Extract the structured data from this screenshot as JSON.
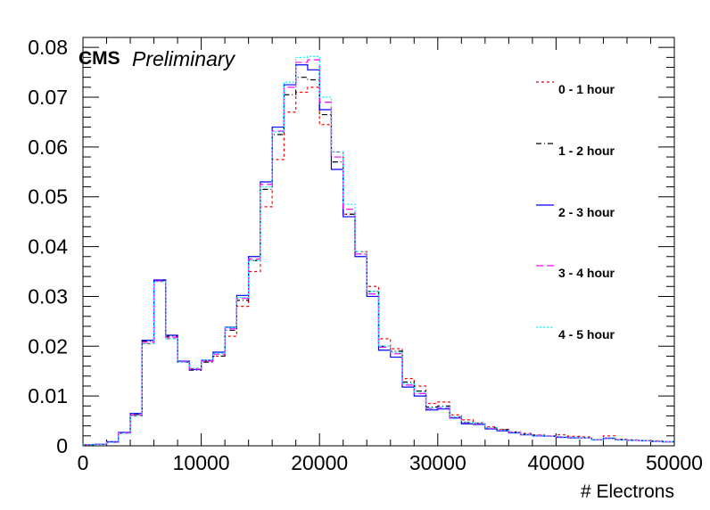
{
  "chart_data": {
    "type": "histogram",
    "header": {
      "experiment": "CMS",
      "status": "Preliminary"
    },
    "xlabel": "# Electrons",
    "ylabel": "",
    "xlim": [
      0,
      50000
    ],
    "ylim": [
      0,
      0.082
    ],
    "x_ticks": [
      0,
      10000,
      20000,
      30000,
      40000,
      50000
    ],
    "x_tick_labels": [
      "0",
      "10000",
      "20000",
      "30000",
      "40000",
      "50000"
    ],
    "y_ticks": [
      0,
      0.01,
      0.02,
      0.03,
      0.04,
      0.05,
      0.06,
      0.07,
      0.08
    ],
    "y_tick_labels": [
      "0",
      "0.01",
      "0.02",
      "0.03",
      "0.04",
      "0.05",
      "0.06",
      "0.07",
      "0.08"
    ],
    "grid": false,
    "legend_position": "right",
    "bin_width": 1000,
    "bin_edges_start": 0,
    "series": [
      {
        "name": "0 - 1 hour",
        "color": "#ff0000",
        "line_style": "dashed-short",
        "values": [
          0.0002,
          0.0003,
          0.0008,
          0.0025,
          0.006,
          0.0205,
          0.033,
          0.0215,
          0.017,
          0.0155,
          0.017,
          0.018,
          0.022,
          0.028,
          0.035,
          0.048,
          0.0575,
          0.067,
          0.071,
          0.072,
          0.0645,
          0.059,
          0.0465,
          0.039,
          0.032,
          0.0215,
          0.0195,
          0.0135,
          0.012,
          0.0085,
          0.0088,
          0.0062,
          0.0052,
          0.0046,
          0.0038,
          0.0033,
          0.0028,
          0.0025,
          0.0022,
          0.002,
          0.0022,
          0.0019,
          0.0018,
          0.0012,
          0.002,
          0.0013,
          0.0012,
          0.001,
          0.001,
          0.0008
        ]
      },
      {
        "name": "1 - 2 hour",
        "color": "#000000",
        "line_style": "dash-dot",
        "values": [
          0.0002,
          0.0003,
          0.0008,
          0.0026,
          0.0063,
          0.021,
          0.0332,
          0.022,
          0.0168,
          0.0152,
          0.0168,
          0.018,
          0.0232,
          0.0292,
          0.0372,
          0.0515,
          0.0625,
          0.0705,
          0.074,
          0.0735,
          0.0665,
          0.057,
          0.0465,
          0.0385,
          0.031,
          0.02,
          0.019,
          0.0128,
          0.011,
          0.0078,
          0.008,
          0.0058,
          0.0047,
          0.0045,
          0.0036,
          0.0032,
          0.0027,
          0.0023,
          0.0021,
          0.0019,
          0.0018,
          0.0017,
          0.0016,
          0.0012,
          0.0016,
          0.0012,
          0.0011,
          0.001,
          0.0009,
          0.0008
        ]
      },
      {
        "name": "2 - 3 hour",
        "color": "#0000ff",
        "line_style": "solid",
        "values": [
          0.0002,
          0.0003,
          0.0008,
          0.0027,
          0.0065,
          0.0212,
          0.0333,
          0.0222,
          0.017,
          0.0153,
          0.0172,
          0.0188,
          0.0238,
          0.0302,
          0.038,
          0.053,
          0.064,
          0.0725,
          0.0765,
          0.0755,
          0.0675,
          0.0555,
          0.046,
          0.038,
          0.03,
          0.0192,
          0.0178,
          0.0118,
          0.01,
          0.0072,
          0.0074,
          0.0056,
          0.0044,
          0.0043,
          0.0034,
          0.003,
          0.0026,
          0.0022,
          0.002,
          0.0019,
          0.0017,
          0.0016,
          0.0016,
          0.0012,
          0.0015,
          0.0012,
          0.0011,
          0.001,
          0.0009,
          0.0008
        ]
      },
      {
        "name": "3 - 4 hour",
        "color": "#ff00ff",
        "line_style": "dashed-long",
        "values": [
          0.0002,
          0.0003,
          0.0007,
          0.0026,
          0.0062,
          0.0208,
          0.0331,
          0.0218,
          0.0169,
          0.0154,
          0.017,
          0.0184,
          0.0235,
          0.0296,
          0.0375,
          0.0525,
          0.0632,
          0.072,
          0.077,
          0.0775,
          0.069,
          0.058,
          0.0475,
          0.0385,
          0.0305,
          0.0198,
          0.0185,
          0.0122,
          0.0105,
          0.0075,
          0.0077,
          0.0057,
          0.0046,
          0.0044,
          0.0035,
          0.0031,
          0.0027,
          0.0023,
          0.0021,
          0.0019,
          0.0018,
          0.0017,
          0.0016,
          0.0012,
          0.0016,
          0.0012,
          0.0011,
          0.001,
          0.0009,
          0.0008
        ]
      },
      {
        "name": "4 - 5 hour",
        "color": "#00ffff",
        "line_style": "dotted",
        "values": [
          0.0002,
          0.0003,
          0.0007,
          0.0025,
          0.006,
          0.0205,
          0.033,
          0.0215,
          0.0168,
          0.0156,
          0.0172,
          0.0186,
          0.0237,
          0.0298,
          0.0372,
          0.052,
          0.063,
          0.073,
          0.078,
          0.0782,
          0.07,
          0.059,
          0.0485,
          0.039,
          0.031,
          0.02,
          0.0188,
          0.0125,
          0.0108,
          0.0076,
          0.0078,
          0.0058,
          0.0047,
          0.0045,
          0.0036,
          0.0031,
          0.0027,
          0.0023,
          0.0021,
          0.0019,
          0.0018,
          0.0017,
          0.0016,
          0.0012,
          0.0016,
          0.0012,
          0.0011,
          0.001,
          0.0009,
          0.0008
        ]
      }
    ]
  }
}
